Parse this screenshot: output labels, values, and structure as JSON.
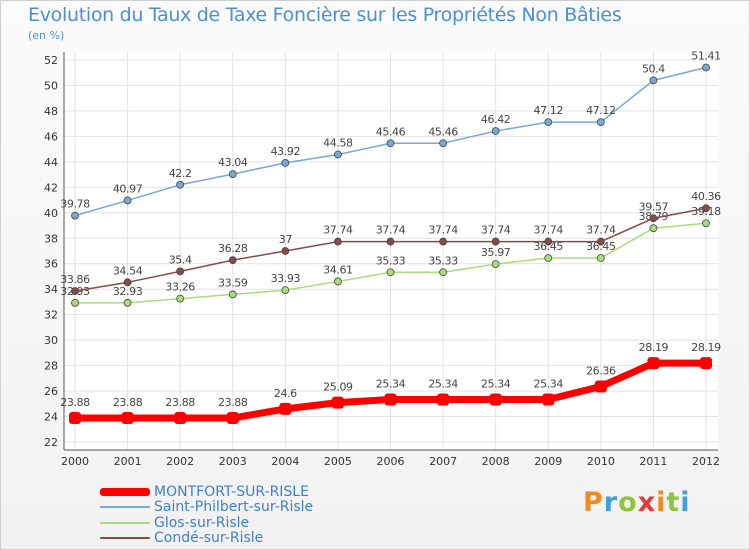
{
  "title": "Evolution du Taux de Taxe Foncière sur les Propriétés Non Bâties",
  "unit_label": "(en %)",
  "logo": {
    "text": "Proxiti",
    "colors": [
      "#f08a24",
      "#3fa0d8",
      "#8cc63f",
      "#e53935",
      "#f08a24",
      "#8cc63f",
      "#3fa0d8"
    ]
  },
  "chart_data": {
    "type": "line",
    "x": [
      "2000",
      "2001",
      "2002",
      "2003",
      "2004",
      "2005",
      "2006",
      "2007",
      "2008",
      "2009",
      "2010",
      "2011",
      "2012"
    ],
    "ylim": [
      22,
      52
    ],
    "yticks": [
      "22",
      "24",
      "26",
      "28",
      "30",
      "32",
      "34",
      "36",
      "38",
      "40",
      "42",
      "44",
      "46",
      "48",
      "50",
      "52"
    ],
    "grid": true,
    "legend_position": "bottom-left",
    "series": [
      {
        "name": "MONTFORT-SUR-RISLE",
        "color": "#ff0000",
        "values": [
          23.88,
          23.88,
          23.88,
          23.88,
          24.6,
          25.09,
          25.34,
          25.34,
          25.34,
          25.34,
          26.36,
          28.19,
          28.19
        ],
        "labels": [
          "23.88",
          "23.88",
          "23.88",
          "23.88",
          "24.6",
          "25.09",
          "25.34",
          "25.34",
          "25.34",
          "25.34",
          "26.36",
          "28.19",
          "28.19"
        ]
      },
      {
        "name": "Saint-Philbert-sur-Risle",
        "color": "#79a8d6",
        "values": [
          39.78,
          40.97,
          42.2,
          43.04,
          43.92,
          44.58,
          45.46,
          45.46,
          46.42,
          47.12,
          47.12,
          50.4,
          51.41
        ],
        "labels": [
          "39.78",
          "40.97",
          "42.2",
          "43.04",
          "43.92",
          "44.58",
          "45.46",
          "45.46",
          "46.42",
          "47.12",
          "47.12",
          "50.4",
          "51.41"
        ]
      },
      {
        "name": "Glos-sur-Risle",
        "color": "#a8dc7c",
        "values": [
          32.93,
          32.93,
          33.26,
          33.59,
          33.93,
          34.61,
          35.33,
          35.33,
          35.97,
          36.45,
          36.45,
          38.79,
          39.18
        ],
        "labels": [
          "32.93",
          "32.93",
          "33.26",
          "33.59",
          "33.93",
          "34.61",
          "35.33",
          "35.33",
          "35.97",
          "36.45",
          "36.45",
          "38.79",
          "39.18"
        ]
      },
      {
        "name": "Condé-sur-Risle",
        "color": "#8a4a4a",
        "values": [
          33.86,
          34.54,
          35.4,
          36.28,
          37,
          37.74,
          37.74,
          37.74,
          37.74,
          37.74,
          37.74,
          39.57,
          40.36
        ],
        "labels": [
          "33.86",
          "34.54",
          "35.4",
          "36.28",
          "37",
          "37.74",
          "37.74",
          "37.74",
          "37.74",
          "37.74",
          "37.74",
          "39.57",
          "40.36"
        ]
      }
    ]
  }
}
